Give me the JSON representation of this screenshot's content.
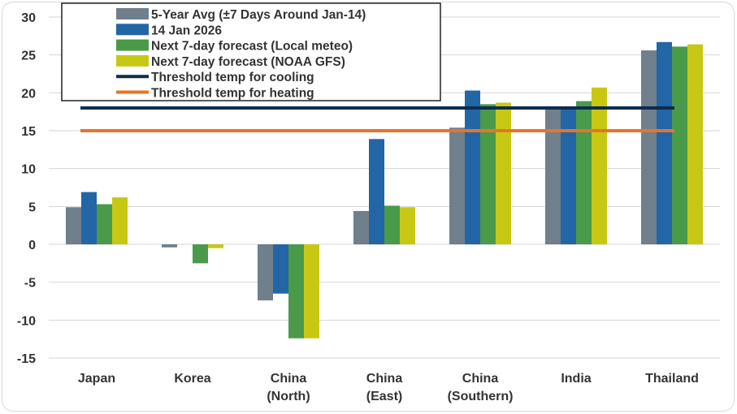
{
  "chart_data": {
    "type": "bar",
    "categories": [
      [
        "Japan"
      ],
      [
        "Korea"
      ],
      [
        "China",
        "(North)"
      ],
      [
        "China",
        "(East)"
      ],
      [
        "China",
        "(Southern)"
      ],
      [
        "India"
      ],
      [
        "Thailand"
      ]
    ],
    "series": [
      {
        "name": "5-Year Avg (±7 Days Around Jan-14)",
        "color": "#6f7f8c",
        "values": [
          4.9,
          -0.4,
          -7.4,
          4.4,
          15.4,
          18.0,
          25.6
        ]
      },
      {
        "name": "14 Jan 2026",
        "color": "#2266a6",
        "values": [
          6.9,
          0.0,
          -6.5,
          13.9,
          20.3,
          18.0,
          26.7
        ]
      },
      {
        "name": "Next 7-day forecast (Local meteo)",
        "color": "#4a9a4a",
        "values": [
          5.3,
          -2.5,
          -12.4,
          5.1,
          18.5,
          18.9,
          26.1
        ]
      },
      {
        "name": "Next 7-day forecast (NOAA GFS)",
        "color": "#c8c814",
        "values": [
          6.2,
          -0.5,
          -12.4,
          4.9,
          18.7,
          20.7,
          26.4
        ]
      }
    ],
    "thresholds": [
      {
        "name": "Threshold temp for cooling",
        "value": 18,
        "color": "#0d2c4f"
      },
      {
        "name": "Threshold temp for heating",
        "value": 15,
        "color": "#e8732a"
      }
    ],
    "ylim": [
      -15,
      30
    ],
    "yticks": [
      30,
      25,
      20,
      15,
      10,
      5,
      0,
      -5,
      -10,
      -15
    ],
    "grid": true,
    "legend_position": "top-left",
    "title": "",
    "xlabel": "",
    "ylabel": ""
  }
}
